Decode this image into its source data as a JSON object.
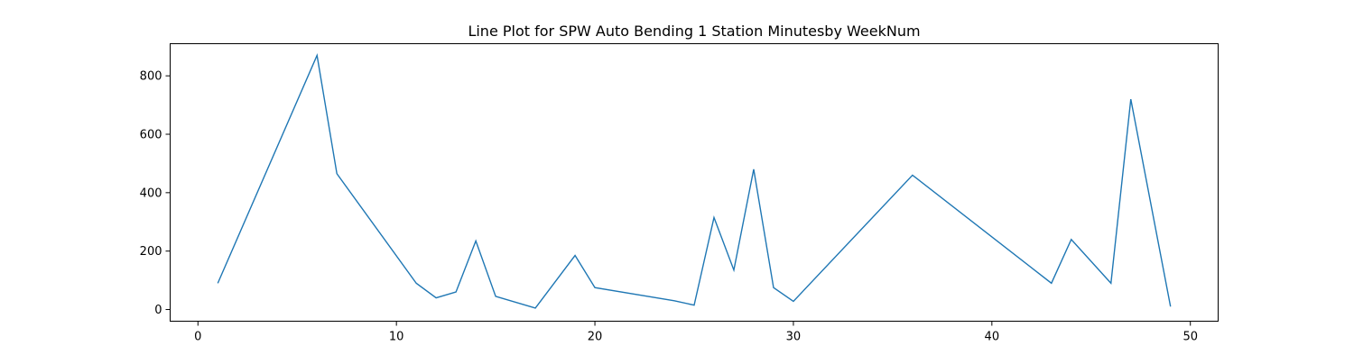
{
  "chart_data": {
    "type": "line",
    "title": "Line Plot for SPW Auto Bending 1 Station Minutesby WeekNum",
    "xlabel": "",
    "ylabel": "",
    "xlim": [
      -1.4,
      51.4
    ],
    "ylim": [
      -40,
      910
    ],
    "xticks": [
      0,
      10,
      20,
      30,
      40,
      50
    ],
    "yticks": [
      0,
      200,
      400,
      600,
      800
    ],
    "grid": false,
    "colors": {
      "line": "#1f77b4",
      "axes": "#000000"
    },
    "series": [
      {
        "x": [
          1,
          6,
          7,
          11,
          12,
          13,
          14,
          15,
          17,
          19,
          20,
          24,
          25,
          26,
          27,
          28,
          29,
          30,
          36,
          43,
          44,
          46,
          47,
          49
        ],
        "y": [
          90,
          870,
          465,
          90,
          40,
          60,
          235,
          45,
          5,
          185,
          75,
          30,
          15,
          315,
          135,
          480,
          75,
          28,
          460,
          90,
          240,
          90,
          720,
          10
        ]
      }
    ]
  }
}
